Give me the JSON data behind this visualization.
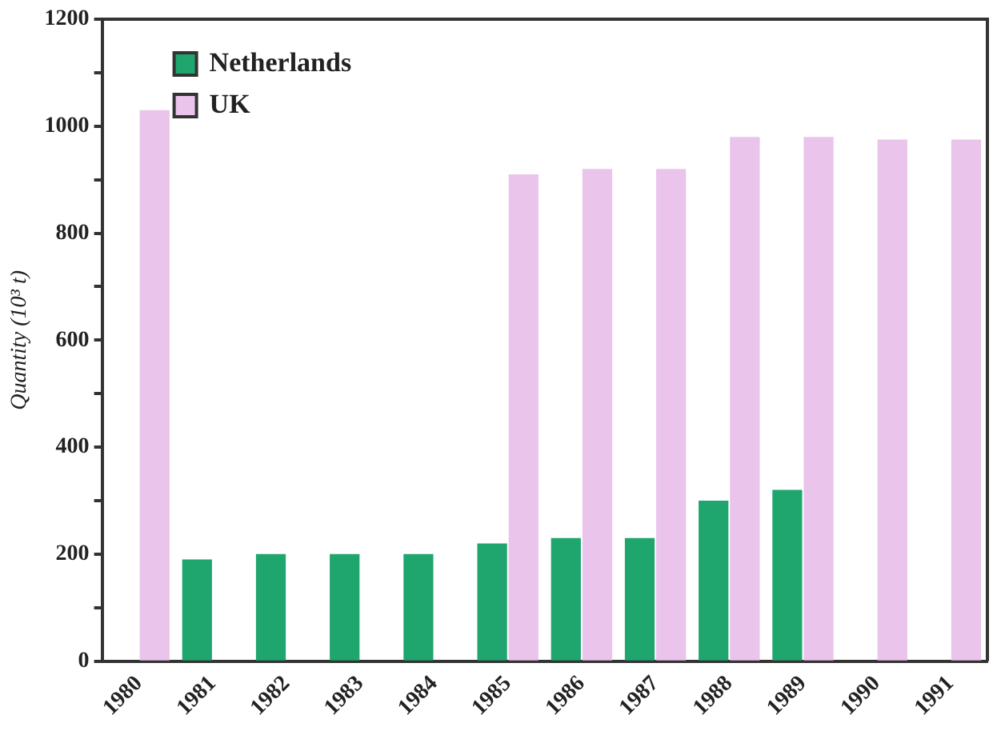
{
  "chart_data": {
    "type": "bar",
    "ylabel": "Quantity (10³ t)",
    "categories": [
      "1980",
      "1981",
      "1982",
      "1983",
      "1984",
      "1985",
      "1986",
      "1987",
      "1988",
      "1989",
      "1990",
      "1991"
    ],
    "series": [
      {
        "name": "Netherlands",
        "color": "#1fa56e",
        "values": [
          null,
          190,
          200,
          200,
          200,
          220,
          230,
          230,
          300,
          320,
          null,
          null
        ]
      },
      {
        "name": "UK",
        "color": "#eac4ea",
        "values": [
          1030,
          null,
          null,
          null,
          null,
          910,
          920,
          920,
          980,
          980,
          975,
          975
        ]
      }
    ],
    "ylim": [
      0,
      1200
    ],
    "yticks": [
      0,
      {
        "value": 100,
        "label": null
      },
      200,
      {
        "value": 300,
        "label": null
      },
      400,
      {
        "value": 500,
        "label": null
      },
      600,
      {
        "value": 700,
        "label": null
      },
      800,
      {
        "value": 900,
        "label": null
      },
      1000,
      {
        "value": 1100,
        "label": null
      },
      1200
    ],
    "grid": false,
    "legend": "top left"
  }
}
